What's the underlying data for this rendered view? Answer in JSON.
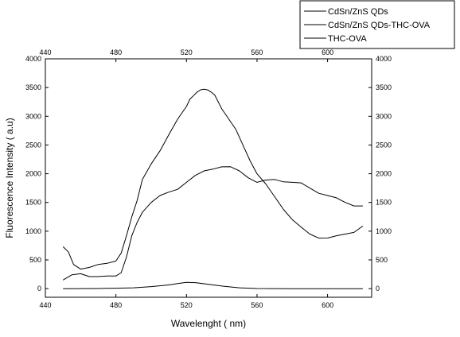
{
  "chart_data": {
    "type": "line",
    "xlabel": "Wavelenght (  nm)",
    "ylabel": "Fluorescence Intensity (  a.u)",
    "xlim": [
      440,
      625
    ],
    "ylim": [
      -150,
      4000
    ],
    "xticks": [
      440,
      480,
      520,
      560,
      600
    ],
    "yticks": [
      0,
      500,
      1000,
      1500,
      2000,
      2500,
      3000,
      3500,
      4000
    ],
    "secondary_axes": {
      "top_x": true,
      "right_y": true
    },
    "grid": false,
    "legend_position": "top-right-outside",
    "series": [
      {
        "name": "CdSn/ZnS QDs",
        "color": "#000000",
        "x": [
          450,
          453,
          456,
          460,
          465,
          470,
          475,
          480,
          483,
          486,
          489,
          492,
          495,
          500,
          505,
          510,
          515,
          520,
          522,
          524,
          526,
          528,
          530,
          532,
          534,
          536,
          538,
          540,
          544,
          548,
          552,
          556,
          560,
          565,
          570,
          575,
          580,
          585,
          590,
          595,
          600,
          605,
          610,
          615,
          620
        ],
        "y": [
          730,
          620,
          420,
          360,
          370,
          400,
          440,
          500,
          620,
          900,
          1250,
          1550,
          1900,
          2150,
          2400,
          2700,
          2950,
          3150,
          3300,
          3380,
          3420,
          3440,
          3470,
          3480,
          3420,
          3350,
          3250,
          3150,
          2950,
          2750,
          2500,
          2250,
          2000,
          1800,
          1600,
          1400,
          1200,
          1050,
          950,
          900,
          880,
          900,
          950,
          1000,
          1090
        ]
      },
      {
        "name": "CdSn/ZnS QDs-THC-OVA",
        "color": "#000000",
        "x": [
          450,
          455,
          460,
          465,
          470,
          475,
          480,
          483,
          486,
          489,
          492,
          495,
          500,
          505,
          510,
          515,
          520,
          525,
          530,
          535,
          540,
          545,
          550,
          555,
          560,
          565,
          570,
          575,
          580,
          585,
          590,
          595,
          600,
          605,
          610,
          615,
          620
        ],
        "y": [
          150,
          220,
          260,
          230,
          210,
          200,
          220,
          300,
          550,
          900,
          1150,
          1350,
          1500,
          1600,
          1680,
          1750,
          1850,
          1950,
          2050,
          2100,
          2120,
          2100,
          2050,
          1950,
          1850,
          1870,
          1900,
          1880,
          1850,
          1820,
          1750,
          1680,
          1620,
          1560,
          1500,
          1460,
          1440
        ]
      },
      {
        "name": "THC-OVA",
        "color": "#000000",
        "x": [
          450,
          470,
          480,
          490,
          500,
          510,
          515,
          520,
          525,
          530,
          540,
          550,
          560,
          580,
          600,
          620
        ],
        "y": [
          0,
          2,
          8,
          15,
          35,
          65,
          90,
          110,
          105,
          85,
          45,
          15,
          2,
          0,
          0,
          0
        ]
      }
    ]
  }
}
